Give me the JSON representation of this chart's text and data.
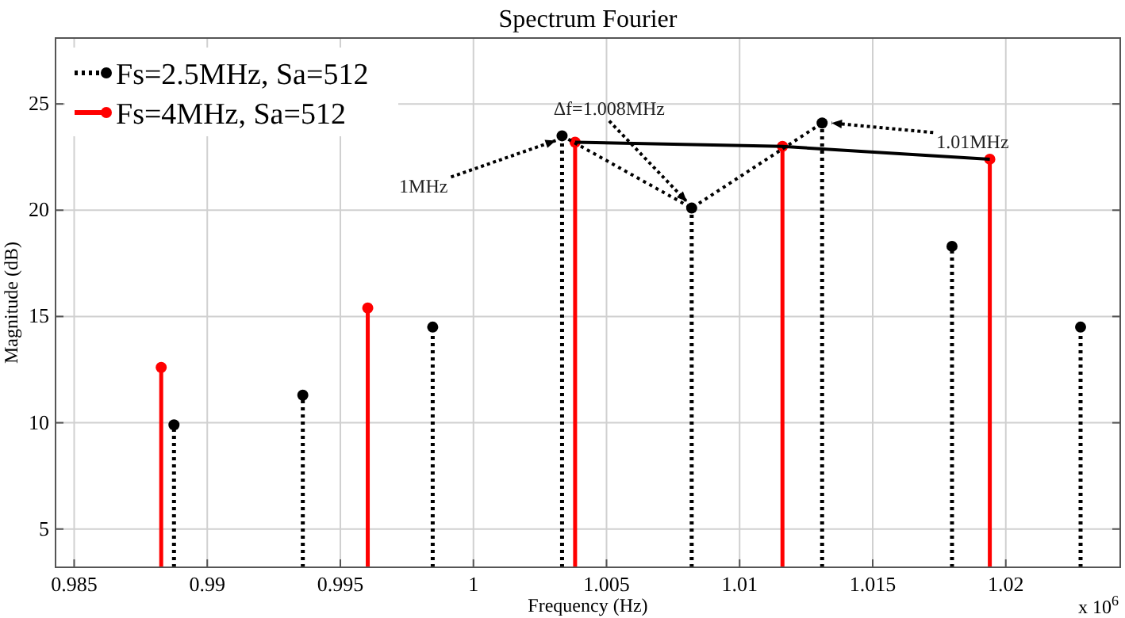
{
  "chart_data": {
    "type": "lollipop",
    "title": "Spectrum Fourier",
    "xlabel": "Frequency (Hz)",
    "ylabel": "Magnitude (dB)",
    "xlim": [
      0.9843,
      1.0243
    ],
    "xticks": [
      0.985,
      0.99,
      0.995,
      1,
      1.005,
      1.01,
      1.015,
      1.02
    ],
    "ylim": [
      3.2,
      28.1
    ],
    "yticks": [
      5,
      10,
      15,
      20,
      25
    ],
    "grid": true,
    "legend": "top left",
    "marker": "circle",
    "series": [
      {
        "name": "Fs=2.5MHz, Sa=512",
        "color": "#000000",
        "line_style": "dotted",
        "x": [
          0.98875,
          0.99359,
          0.99847,
          1.00333,
          1.0082,
          1.0131,
          1.01798,
          1.02281
        ],
        "values": [
          9.9,
          11.3,
          14.5,
          23.5,
          20.1,
          24.1,
          18.3,
          14.5
        ]
      },
      {
        "name": "Fs=4MHz, Sa=512",
        "color": "#ff0000",
        "line_style": "solid",
        "x": [
          0.98827,
          0.99603,
          1.00382,
          1.01161,
          1.0194
        ],
        "values": [
          12.6,
          15.4,
          23.2,
          23.0,
          22.4
        ]
      },
      {
        "type": "line",
        "color": "#000000",
        "line_style": "solid",
        "marker": "none",
        "x": [
          1.00382,
          1.01161,
          1.0194
        ],
        "values": [
          23.2,
          23.0,
          22.4
        ]
      },
      {
        "type": "line",
        "color": "#000000",
        "line_style": "dotted",
        "marker": "none",
        "x": [
          1.00333,
          1.0082,
          1.0131
        ],
        "values": [
          23.5,
          20.1,
          24.1
        ]
      }
    ],
    "annotations": [
      {
        "text": "1MHz",
        "x": 1.00333,
        "y": 23.5
      },
      {
        "text": "Δf=1.008MHz",
        "x": 1.0082,
        "y": 20.1
      },
      {
        "text": "1.01MHz",
        "x": 1.0131,
        "y": 24.1
      },
      "x 10$^{6}$"
    ]
  }
}
